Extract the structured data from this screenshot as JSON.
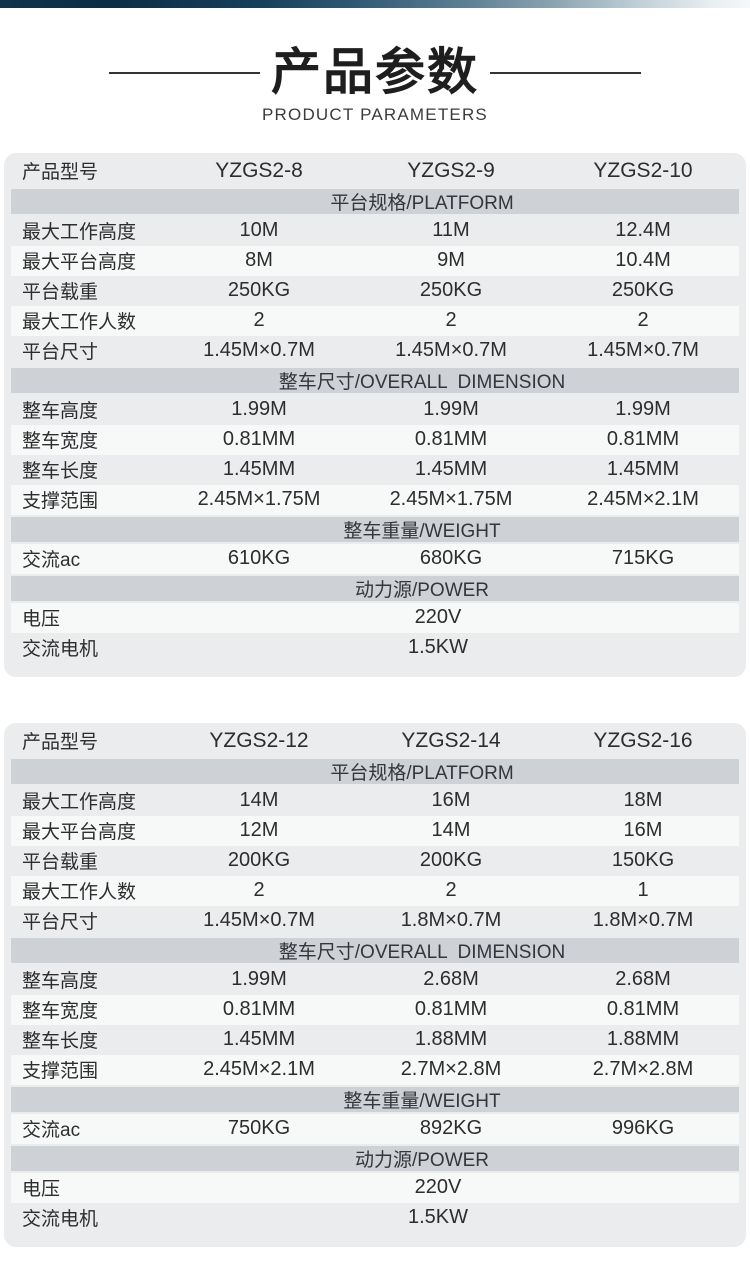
{
  "header": {
    "title": "产品参数",
    "subtitle": "PRODUCT PARAMETERS"
  },
  "colors": {
    "topbar_dark": "#0c2d44",
    "topbar_light": "#f6f8f9",
    "card_bg": "#ebeced",
    "band_bg": "#ced1d5",
    "row_white": "#f7f8f8",
    "text": "#2d2d2f"
  },
  "tables": [
    {
      "header": {
        "label": "产品型号",
        "models": [
          "YZGS2-8",
          "YZGS2-9",
          "YZGS2-10"
        ]
      },
      "sections": [
        {
          "band": "平台规格/PLATFORM",
          "rows": [
            {
              "label": "最大工作高度",
              "values": [
                "10M",
                "11M",
                "12.4M"
              ]
            },
            {
              "label": "最大平台高度",
              "values": [
                "8M",
                "9M",
                "10.4M"
              ]
            },
            {
              "label": "平台载重",
              "values": [
                "250KG",
                "250KG",
                "250KG"
              ]
            },
            {
              "label": "最大工作人数",
              "values": [
                "2",
                "2",
                "2"
              ]
            },
            {
              "label": "平台尺寸",
              "values": [
                "1.45M×0.7M",
                "1.45M×0.7M",
                "1.45M×0.7M"
              ]
            }
          ]
        },
        {
          "band": "整车尺寸/OVERALL  DIMENSION",
          "rows": [
            {
              "label": "整车高度",
              "values": [
                "1.99M",
                "1.99M",
                "1.99M"
              ]
            },
            {
              "label": "整车宽度",
              "values": [
                "0.81MM",
                "0.81MM",
                "0.81MM"
              ]
            },
            {
              "label": "整车长度",
              "values": [
                "1.45MM",
                "1.45MM",
                "1.45MM"
              ]
            },
            {
              "label": "支撑范围",
              "values": [
                "2.45M×1.75M",
                "2.45M×1.75M",
                "2.45M×2.1M"
              ]
            }
          ]
        },
        {
          "band": "整车重量/WEIGHT",
          "rows": [
            {
              "label": "交流ac",
              "values": [
                "610KG",
                "680KG",
                "715KG"
              ]
            }
          ]
        },
        {
          "band": "动力源/POWER",
          "rows": [
            {
              "label": "电压",
              "merged": "220V"
            },
            {
              "label": "交流电机",
              "merged": "1.5KW"
            }
          ]
        }
      ]
    },
    {
      "header": {
        "label": "产品型号",
        "models": [
          "YZGS2-12",
          "YZGS2-14",
          "YZGS2-16"
        ]
      },
      "sections": [
        {
          "band": "平台规格/PLATFORM",
          "rows": [
            {
              "label": "最大工作高度",
              "values": [
                "14M",
                "16M",
                "18M"
              ]
            },
            {
              "label": "最大平台高度",
              "values": [
                "12M",
                "14M",
                "16M"
              ]
            },
            {
              "label": "平台载重",
              "values": [
                "200KG",
                "200KG",
                "150KG"
              ]
            },
            {
              "label": "最大工作人数",
              "values": [
                "2",
                "2",
                "1"
              ]
            },
            {
              "label": "平台尺寸",
              "values": [
                "1.45M×0.7M",
                "1.8M×0.7M",
                "1.8M×0.7M"
              ]
            }
          ]
        },
        {
          "band": "整车尺寸/OVERALL  DIMENSION",
          "rows": [
            {
              "label": "整车高度",
              "values": [
                "1.99M",
                "2.68M",
                "2.68M"
              ]
            },
            {
              "label": "整车宽度",
              "values": [
                "0.81MM",
                "0.81MM",
                "0.81MM"
              ]
            },
            {
              "label": "整车长度",
              "values": [
                "1.45MM",
                "1.88MM",
                "1.88MM"
              ]
            },
            {
              "label": "支撑范围",
              "values": [
                "2.45M×2.1M",
                "2.7M×2.8M",
                "2.7M×2.8M"
              ]
            }
          ]
        },
        {
          "band": "整车重量/WEIGHT",
          "rows": [
            {
              "label": "交流ac",
              "values": [
                "750KG",
                "892KG",
                "996KG"
              ]
            }
          ]
        },
        {
          "band": "动力源/POWER",
          "rows": [
            {
              "label": "电压",
              "merged": "220V"
            },
            {
              "label": "交流电机",
              "merged": "1.5KW"
            }
          ]
        }
      ]
    }
  ]
}
